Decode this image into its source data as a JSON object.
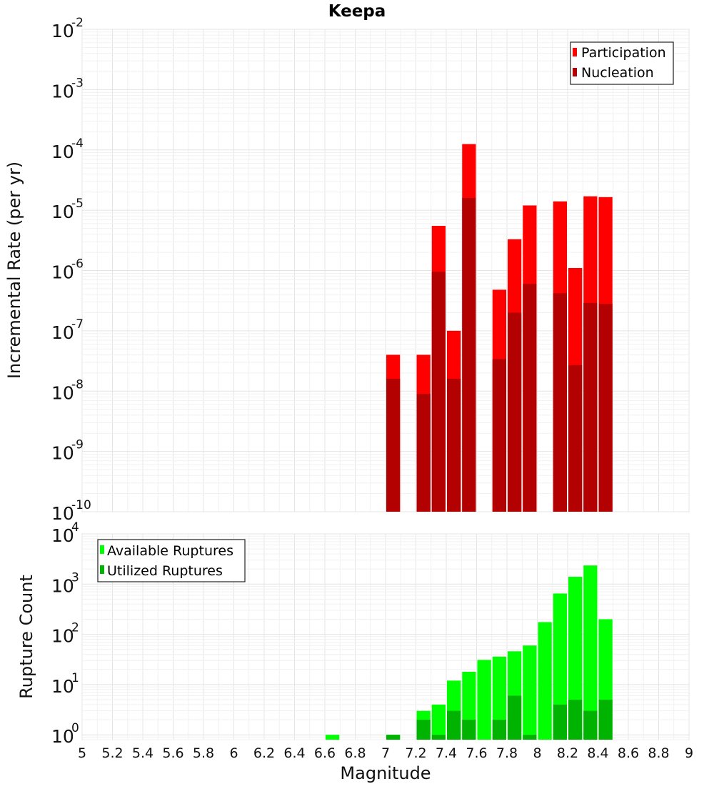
{
  "chart_data": [
    {
      "type": "bar",
      "title": "Keepa",
      "ylabel": "Incremental Rate (per yr)",
      "xlabel": "",
      "ylog": true,
      "ylim": [
        1e-10,
        0.01
      ],
      "xlim": [
        5,
        9
      ],
      "bin_width": 0.1,
      "y_ticks": [
        {
          "base": "10",
          "exp": "-10",
          "value": 1e-10
        },
        {
          "base": "10",
          "exp": "-9",
          "value": 1e-09
        },
        {
          "base": "10",
          "exp": "-8",
          "value": 1e-08
        },
        {
          "base": "10",
          "exp": "-7",
          "value": 1e-07
        },
        {
          "base": "10",
          "exp": "-6",
          "value": 1e-06
        },
        {
          "base": "10",
          "exp": "-5",
          "value": 1e-05
        },
        {
          "base": "10",
          "exp": "-4",
          "value": 0.0001
        },
        {
          "base": "10",
          "exp": "-3",
          "value": 0.001
        },
        {
          "base": "10",
          "exp": "-2",
          "value": 0.01
        }
      ],
      "legend_position": "top-right",
      "series": [
        {
          "name": "Participation",
          "color": "#ff0000",
          "x": [
            7.05,
            7.25,
            7.35,
            7.45,
            7.55,
            7.75,
            7.85,
            7.95,
            8.15,
            8.25,
            8.35,
            8.45
          ],
          "values": [
            4e-08,
            4e-08,
            5.5e-06,
            1e-07,
            0.000125,
            4.8e-07,
            3.3e-06,
            1.2e-05,
            1.4e-05,
            1.1e-06,
            1.7e-05,
            1.65e-05
          ]
        },
        {
          "name": "Nucleation",
          "color": "#b30000",
          "x": [
            7.05,
            7.25,
            7.35,
            7.45,
            7.55,
            7.75,
            7.85,
            7.95,
            8.15,
            8.25,
            8.35,
            8.45
          ],
          "values": [
            1.6e-08,
            9e-09,
            9.5e-07,
            1.6e-08,
            1.6e-05,
            3.4e-08,
            2e-07,
            6e-07,
            4.2e-07,
            2.7e-08,
            2.9e-07,
            2.8e-07
          ]
        }
      ]
    },
    {
      "type": "bar",
      "title": "",
      "ylabel": "Rupture Count",
      "xlabel": "Magnitude",
      "ylog": true,
      "ylim": [
        0.8,
        10000
      ],
      "xlim": [
        5,
        9
      ],
      "bin_width": 0.1,
      "x_ticks": [
        "5",
        "5.2",
        "5.4",
        "5.6",
        "5.8",
        "6",
        "6.2",
        "6.4",
        "6.6",
        "6.8",
        "7",
        "7.2",
        "7.4",
        "7.6",
        "7.8",
        "8",
        "8.2",
        "8.4",
        "8.6",
        "8.8",
        "9"
      ],
      "y_ticks": [
        {
          "base": "10",
          "exp": "0",
          "value": 1
        },
        {
          "base": "10",
          "exp": "1",
          "value": 10
        },
        {
          "base": "10",
          "exp": "2",
          "value": 100
        },
        {
          "base": "10",
          "exp": "3",
          "value": 1000
        },
        {
          "base": "10",
          "exp": "4",
          "value": 10000
        }
      ],
      "legend_position": "top-left",
      "series": [
        {
          "name": "Available Ruptures",
          "color": "#00ff00",
          "x": [
            6.65,
            7.05,
            7.25,
            7.35,
            7.45,
            7.55,
            7.65,
            7.75,
            7.85,
            7.95,
            8.05,
            8.15,
            8.25,
            8.35,
            8.45
          ],
          "values": [
            1,
            1,
            3,
            4,
            12,
            18,
            31,
            36,
            46,
            60,
            175,
            650,
            1400,
            2350,
            200
          ]
        },
        {
          "name": "Utilized Ruptures",
          "color": "#00b300",
          "x": [
            6.65,
            7.05,
            7.25,
            7.35,
            7.45,
            7.55,
            7.65,
            7.75,
            7.85,
            7.95,
            8.05,
            8.15,
            8.25,
            8.35,
            8.45
          ],
          "values": [
            0,
            1,
            2,
            1,
            3,
            2,
            0,
            2,
            6,
            1,
            0,
            4,
            5,
            3,
            5
          ]
        }
      ]
    }
  ]
}
